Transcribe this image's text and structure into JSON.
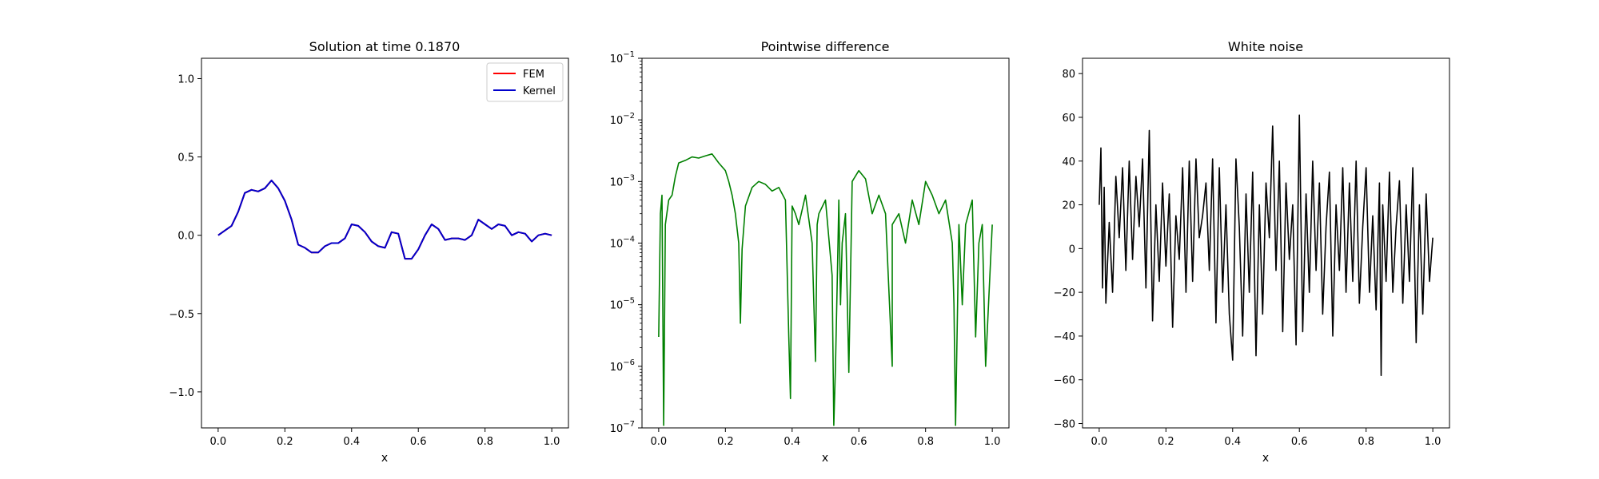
{
  "chart_data": [
    {
      "type": "line",
      "title": "Solution at time 0.1870",
      "xlabel": "x",
      "ylabel": "",
      "xlim": [
        -0.05,
        1.05
      ],
      "ylim": [
        -1.23,
        1.13
      ],
      "xticks": [
        0.0,
        0.2,
        0.4,
        0.6,
        0.8,
        1.0
      ],
      "xtick_labels": [
        "0.0",
        "0.2",
        "0.4",
        "0.6",
        "0.8",
        "1.0"
      ],
      "yticks": [
        -1.0,
        -0.5,
        0.0,
        0.5,
        1.0
      ],
      "ytick_labels": [
        "−1.0",
        "−0.5",
        "0.0",
        "0.5",
        "1.0"
      ],
      "legend": {
        "position": "top-right",
        "entries": [
          "FEM",
          "Kernel"
        ]
      },
      "colors": {
        "FEM": "#ff0000",
        "Kernel": "#0000cc"
      },
      "x": [
        0.0,
        0.02,
        0.04,
        0.06,
        0.08,
        0.1,
        0.12,
        0.14,
        0.16,
        0.18,
        0.2,
        0.22,
        0.24,
        0.26,
        0.28,
        0.3,
        0.32,
        0.34,
        0.36,
        0.38,
        0.4,
        0.42,
        0.44,
        0.46,
        0.48,
        0.5,
        0.52,
        0.54,
        0.56,
        0.58,
        0.6,
        0.62,
        0.64,
        0.66,
        0.68,
        0.7,
        0.72,
        0.74,
        0.76,
        0.78,
        0.8,
        0.82,
        0.84,
        0.86,
        0.88,
        0.9,
        0.92,
        0.94,
        0.96,
        0.98,
        1.0
      ],
      "series": [
        {
          "name": "FEM",
          "values": [
            0.0,
            0.03,
            0.06,
            0.15,
            0.27,
            0.29,
            0.28,
            0.3,
            0.35,
            0.3,
            0.22,
            0.1,
            -0.06,
            -0.08,
            -0.11,
            -0.11,
            -0.07,
            -0.05,
            -0.05,
            -0.02,
            0.07,
            0.06,
            0.02,
            -0.04,
            -0.07,
            -0.08,
            0.02,
            0.01,
            -0.15,
            -0.15,
            -0.09,
            0.0,
            0.07,
            0.04,
            -0.03,
            -0.02,
            -0.02,
            -0.03,
            0.0,
            0.1,
            0.07,
            0.04,
            0.07,
            0.06,
            0.0,
            0.02,
            0.01,
            -0.04,
            0.0,
            0.01,
            0.0
          ]
        },
        {
          "name": "Kernel",
          "values": [
            0.0,
            0.03,
            0.06,
            0.15,
            0.27,
            0.29,
            0.28,
            0.3,
            0.35,
            0.3,
            0.22,
            0.1,
            -0.06,
            -0.08,
            -0.11,
            -0.11,
            -0.07,
            -0.05,
            -0.05,
            -0.02,
            0.07,
            0.06,
            0.02,
            -0.04,
            -0.07,
            -0.08,
            0.02,
            0.01,
            -0.15,
            -0.15,
            -0.09,
            0.0,
            0.07,
            0.04,
            -0.03,
            -0.02,
            -0.02,
            -0.03,
            0.0,
            0.1,
            0.07,
            0.04,
            0.07,
            0.06,
            0.0,
            0.02,
            0.01,
            -0.04,
            0.0,
            0.01,
            0.0
          ]
        }
      ]
    },
    {
      "type": "line",
      "title": "Pointwise difference",
      "xlabel": "x",
      "ylabel": "",
      "yscale": "log",
      "xlim": [
        -0.05,
        1.05
      ],
      "ylim": [
        1e-07,
        0.1
      ],
      "xticks": [
        0.0,
        0.2,
        0.4,
        0.6,
        0.8,
        1.0
      ],
      "xtick_labels": [
        "0.0",
        "0.2",
        "0.4",
        "0.6",
        "0.8",
        "1.0"
      ],
      "yticks": [
        1e-07,
        1e-06,
        1e-05,
        0.0001,
        0.001,
        0.01,
        0.1
      ],
      "ytick_base": "10",
      "ytick_exponents": [
        "−7",
        "−6",
        "−5",
        "−4",
        "−3",
        "−2",
        "−1"
      ],
      "colors": {
        "line": "#008000"
      },
      "x": [
        0.0,
        0.005,
        0.01,
        0.015,
        0.02,
        0.03,
        0.04,
        0.05,
        0.06,
        0.08,
        0.1,
        0.12,
        0.14,
        0.16,
        0.18,
        0.2,
        0.21,
        0.22,
        0.23,
        0.24,
        0.245,
        0.25,
        0.26,
        0.28,
        0.3,
        0.32,
        0.34,
        0.36,
        0.38,
        0.39,
        0.395,
        0.4,
        0.41,
        0.42,
        0.44,
        0.46,
        0.47,
        0.475,
        0.48,
        0.5,
        0.52,
        0.525,
        0.53,
        0.535,
        0.54,
        0.545,
        0.55,
        0.56,
        0.57,
        0.58,
        0.6,
        0.62,
        0.64,
        0.66,
        0.68,
        0.7,
        0.7,
        0.72,
        0.74,
        0.76,
        0.78,
        0.8,
        0.82,
        0.84,
        0.86,
        0.88,
        0.885,
        0.89,
        0.9,
        0.91,
        0.92,
        0.94,
        0.95,
        0.96,
        0.97,
        0.98,
        1.0
      ],
      "series": [
        {
          "name": "",
          "values": [
            3e-06,
            0.0003,
            0.0006,
            1.1e-07,
            0.0002,
            0.0005,
            0.0006,
            0.0012,
            0.002,
            0.0022,
            0.0025,
            0.0024,
            0.0026,
            0.0028,
            0.002,
            0.0015,
            0.001,
            0.0006,
            0.0003,
            0.0001,
            5e-06,
            8e-05,
            0.0004,
            0.0008,
            0.001,
            0.0009,
            0.0007,
            0.0008,
            0.0005,
            3e-06,
            3e-07,
            0.0004,
            0.0003,
            0.0002,
            0.0006,
            0.0001,
            1.2e-06,
            0.0002,
            0.0003,
            0.0005,
            3e-05,
            1.1e-07,
            1e-06,
            2e-05,
            0.0005,
            1e-05,
            0.0001,
            0.0003,
            8e-07,
            0.001,
            0.0015,
            0.0011,
            0.0003,
            0.0006,
            0.0003,
            1e-06,
            0.0002,
            0.0003,
            0.0001,
            0.0005,
            0.0002,
            0.001,
            0.0006,
            0.0003,
            0.0005,
            0.0001,
            1e-05,
            1.1e-07,
            0.0002,
            1e-05,
            0.0002,
            0.0005,
            3e-06,
            0.0001,
            0.0002,
            1e-06,
            0.0002
          ]
        }
      ]
    },
    {
      "type": "line",
      "title": "White noise",
      "xlabel": "x",
      "ylabel": "",
      "xlim": [
        -0.05,
        1.05
      ],
      "ylim": [
        -82,
        87
      ],
      "xticks": [
        0.0,
        0.2,
        0.4,
        0.6,
        0.8,
        1.0
      ],
      "xtick_labels": [
        "0.0",
        "0.2",
        "0.4",
        "0.6",
        "0.8",
        "1.0"
      ],
      "yticks": [
        -80,
        -60,
        -40,
        -20,
        0,
        20,
        40,
        60,
        80
      ],
      "ytick_labels": [
        "−80",
        "−60",
        "−40",
        "−20",
        "0",
        "20",
        "40",
        "60",
        "80"
      ],
      "colors": {
        "line": "#000000"
      },
      "x": [
        0.0,
        0.005,
        0.01,
        0.015,
        0.02,
        0.03,
        0.04,
        0.05,
        0.06,
        0.07,
        0.08,
        0.09,
        0.1,
        0.11,
        0.12,
        0.13,
        0.14,
        0.15,
        0.16,
        0.17,
        0.18,
        0.19,
        0.2,
        0.21,
        0.22,
        0.23,
        0.24,
        0.25,
        0.26,
        0.27,
        0.28,
        0.29,
        0.3,
        0.31,
        0.32,
        0.33,
        0.34,
        0.35,
        0.36,
        0.37,
        0.38,
        0.39,
        0.4,
        0.41,
        0.42,
        0.43,
        0.44,
        0.45,
        0.46,
        0.47,
        0.48,
        0.49,
        0.5,
        0.51,
        0.52,
        0.53,
        0.54,
        0.55,
        0.56,
        0.57,
        0.58,
        0.59,
        0.6,
        0.61,
        0.62,
        0.63,
        0.64,
        0.65,
        0.66,
        0.67,
        0.68,
        0.69,
        0.7,
        0.71,
        0.72,
        0.73,
        0.74,
        0.75,
        0.76,
        0.77,
        0.78,
        0.79,
        0.8,
        0.81,
        0.82,
        0.83,
        0.84,
        0.845,
        0.85,
        0.86,
        0.87,
        0.88,
        0.89,
        0.9,
        0.91,
        0.92,
        0.93,
        0.94,
        0.95,
        0.96,
        0.97,
        0.98,
        0.99,
        1.0
      ],
      "series": [
        {
          "name": "",
          "values": [
            20,
            46,
            -18,
            28,
            -25,
            12,
            -20,
            33,
            5,
            37,
            -10,
            40,
            -5,
            33,
            10,
            41,
            -18,
            54,
            -33,
            20,
            -15,
            30,
            -8,
            25,
            -36,
            15,
            -5,
            37,
            -20,
            40,
            -15,
            41,
            5,
            15,
            30,
            -10,
            41,
            -34,
            37,
            -20,
            20,
            -30,
            -51,
            41,
            10,
            -40,
            25,
            -20,
            35,
            -49,
            20,
            -30,
            30,
            5,
            56,
            -10,
            40,
            -38,
            30,
            -5,
            20,
            -44,
            61,
            -38,
            25,
            -20,
            40,
            -10,
            30,
            -30,
            10,
            35,
            -40,
            20,
            -10,
            37,
            -20,
            30,
            -15,
            40,
            -25,
            10,
            37,
            -20,
            15,
            -28,
            30,
            -58,
            20,
            -15,
            35,
            -20,
            10,
            31,
            -25,
            20,
            -15,
            37,
            -43,
            20,
            -30,
            25,
            -15,
            5
          ]
        }
      ]
    }
  ]
}
